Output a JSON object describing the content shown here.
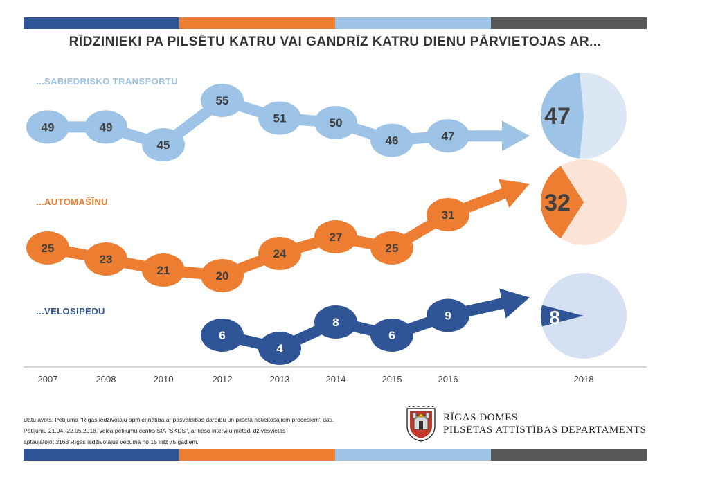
{
  "title": "RĪDZINIEKI PA PILSĒTU KATRU VAI GANDRĪZ KATRU DIENU PĀRVIETOJAS AR...",
  "colors": {
    "transport": "#9dc3e6",
    "transport_light": "#dbe7f5",
    "car": "#ed7d31",
    "car_light": "#fbe4d5",
    "bike": "#2f5597",
    "bike_light": "#d6e0f3",
    "stripe_gray": "#595959",
    "axis": "#c9c9c9"
  },
  "chart_data": {
    "type": "line",
    "x": [
      "2007",
      "2008",
      "2010",
      "2012",
      "2013",
      "2014",
      "2015",
      "2016"
    ],
    "series": [
      {
        "name": "...SABIEDRISKO TRANSPORTU",
        "values": [
          49,
          49,
          45,
          55,
          51,
          50,
          46,
          47
        ]
      },
      {
        "name": "...AUTOMAŠĪNU",
        "values": [
          25,
          23,
          21,
          20,
          24,
          27,
          25,
          31
        ]
      },
      {
        "name": "...VELOSIPĒDU",
        "values": [
          null,
          null,
          null,
          6,
          4,
          8,
          6,
          9
        ]
      }
    ],
    "pie_2018": {
      "year": "2018",
      "values": [
        47,
        32,
        8
      ]
    }
  },
  "source": {
    "line1": "Datu avots: Pētījuma \"Rīgas iedzīvotāju apmierinātība ar pašvaldības darbību un pilsētā notiekošajiem procesiem\" dati.",
    "line2": "Pētījumu 21.04.-22.05.2018. veica pētījumu centrs SIA \"SKDS\", ar tiešo interviju metodi dzīvesvietās",
    "line3": "aptaujātojot 2163 Rīgas iedzīvotājus vecumā no 15 līdz 75 gadiem."
  },
  "org": {
    "line1": "RĪGAS DOMES",
    "line2": "PILSĒTAS ATTĪSTĪBAS DEPARTAMENTS",
    "logo_icon": "riga-coat-of-arms-icon"
  }
}
